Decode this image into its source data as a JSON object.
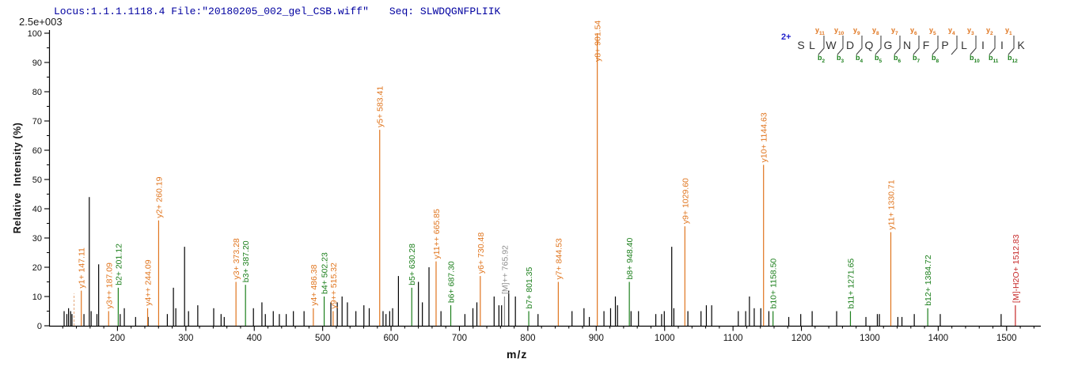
{
  "header": {
    "locus_file": "Locus:1.1.1.1118.4 File:\"20180205_002_gel_CSB.wiff\"",
    "seq_label": "Seq:",
    "seq_value": "SLWDQGNFPLIIK",
    "intensity_scale": "2.5e+003"
  },
  "colors": {
    "header_text": "#0000A0",
    "charge_text": "#2222CC",
    "y_ion": "#E0751E",
    "b_ion": "#1B7F1B",
    "precursor": "#8F8F8F",
    "neutral_loss": "#C62828",
    "peak": "#000000",
    "dashed_peak": "#E8B38C",
    "axis": "#000000",
    "residue": "#333333",
    "slash": "#444444"
  },
  "chart_data": {
    "type": "bar",
    "subtype": "ms2-stick-spectrum",
    "title": "",
    "xlabel": "m/z",
    "ylabel": "Relative  Intensity (%)",
    "xlim": [
      100,
      1550
    ],
    "ylim": [
      0,
      100
    ],
    "x_major_ticks": [
      200,
      300,
      400,
      500,
      600,
      700,
      800,
      900,
      1000,
      1100,
      1200,
      1300,
      1400,
      1500
    ],
    "x_minor_step": 20,
    "y_major_ticks": [
      0,
      10,
      20,
      30,
      40,
      50,
      60,
      70,
      80,
      90,
      100
    ],
    "y_minor_step": 5,
    "grid": false,
    "annotated_peaks": [
      {
        "label": "y1+ 147.11",
        "mz": 147.11,
        "pct": 12,
        "type": "y"
      },
      {
        "label": "y3++ 187.09",
        "mz": 187.09,
        "pct": 5,
        "type": "y"
      },
      {
        "label": "b2+ 201.12",
        "mz": 201.12,
        "pct": 13,
        "type": "b"
      },
      {
        "label": "y4++ 244.09",
        "mz": 244.09,
        "pct": 6,
        "type": "y"
      },
      {
        "label": "y2+ 260.19",
        "mz": 260.19,
        "pct": 36,
        "type": "y"
      },
      {
        "label": "y3+ 373.28",
        "mz": 373.28,
        "pct": 15,
        "type": "y"
      },
      {
        "label": "b3+ 387.20",
        "mz": 387.2,
        "pct": 14,
        "type": "b"
      },
      {
        "label": "y4+ 486.38",
        "mz": 486.38,
        "pct": 6,
        "type": "y"
      },
      {
        "label": "b4+ 502.23",
        "mz": 502.23,
        "pct": 10,
        "type": "b"
      },
      {
        "label": "y9++ 515.32",
        "mz": 515.32,
        "pct": 5,
        "type": "y"
      },
      {
        "label": "y5+ 583.41",
        "mz": 583.41,
        "pct": 67,
        "type": "y"
      },
      {
        "label": "b5+ 630.28",
        "mz": 630.28,
        "pct": 13,
        "type": "b"
      },
      {
        "label": "y11++ 665.85",
        "mz": 665.85,
        "pct": 22,
        "type": "y"
      },
      {
        "label": "b6+ 687.30",
        "mz": 687.3,
        "pct": 7,
        "type": "b"
      },
      {
        "label": "y6+ 730.48",
        "mz": 730.48,
        "pct": 17,
        "type": "y"
      },
      {
        "label": "[M]++ 765.92",
        "mz": 765.92,
        "pct": 10,
        "type": "M"
      },
      {
        "label": "b7+ 801.35",
        "mz": 801.35,
        "pct": 5,
        "type": "b"
      },
      {
        "label": "y7+ 844.53",
        "mz": 844.53,
        "pct": 15,
        "type": "y"
      },
      {
        "label": "y8+ 901.54",
        "mz": 901.54,
        "pct": 100,
        "type": "y"
      },
      {
        "label": "b8+ 948.40",
        "mz": 948.4,
        "pct": 15,
        "type": "b"
      },
      {
        "label": "y9+ 1029.60",
        "mz": 1029.6,
        "pct": 34,
        "type": "y"
      },
      {
        "label": "y10+ 1144.63",
        "mz": 1144.63,
        "pct": 55,
        "type": "y"
      },
      {
        "label": "b10+ 1158.50",
        "mz": 1158.5,
        "pct": 5,
        "type": "b"
      },
      {
        "label": "b11+ 1271.65",
        "mz": 1271.65,
        "pct": 5,
        "type": "b"
      },
      {
        "label": "y11+ 1330.71",
        "mz": 1330.71,
        "pct": 32,
        "type": "y"
      },
      {
        "label": "b12+ 1384.72",
        "mz": 1384.72,
        "pct": 6,
        "type": "b"
      },
      {
        "label": "[M]-H2O+ 1512.83",
        "mz": 1512.83,
        "pct": 7,
        "type": "loss"
      }
    ],
    "dashed_peak": {
      "mz": 136.5,
      "pct": 11,
      "style": "dashed"
    },
    "unannotated_peaks": [
      [
        122,
        5
      ],
      [
        126,
        4
      ],
      [
        128.5,
        6
      ],
      [
        131.5,
        5
      ],
      [
        133.5,
        4
      ],
      [
        151,
        4
      ],
      [
        158.8,
        44
      ],
      [
        161.5,
        5
      ],
      [
        170,
        4
      ],
      [
        172.5,
        21
      ],
      [
        204,
        4
      ],
      [
        210,
        6
      ],
      [
        226.5,
        3
      ],
      [
        244.8,
        3
      ],
      [
        272.9,
        4
      ],
      [
        281.8,
        13
      ],
      [
        285.3,
        6
      ],
      [
        298.1,
        27
      ],
      [
        303.9,
        5
      ],
      [
        317.4,
        7
      ],
      [
        340.7,
        6
      ],
      [
        351.5,
        4
      ],
      [
        356.1,
        3
      ],
      [
        398.8,
        6
      ],
      [
        411.2,
        8
      ],
      [
        416.2,
        4
      ],
      [
        427.8,
        5
      ],
      [
        436.7,
        4
      ],
      [
        446.7,
        4
      ],
      [
        457.2,
        5
      ],
      [
        472.8,
        5
      ],
      [
        512,
        8
      ],
      [
        521.4,
        8
      ],
      [
        528.4,
        10
      ],
      [
        536.2,
        8
      ],
      [
        548.6,
        5
      ],
      [
        560.3,
        7
      ],
      [
        568.1,
        6
      ],
      [
        588.3,
        5
      ],
      [
        592.6,
        4
      ],
      [
        598,
        5
      ],
      [
        602.3,
        6
      ],
      [
        610.8,
        17
      ],
      [
        640,
        15
      ],
      [
        645.8,
        8
      ],
      [
        655.5,
        20
      ],
      [
        673,
        5
      ],
      [
        708,
        4
      ],
      [
        719.7,
        6
      ],
      [
        725.5,
        8
      ],
      [
        750.7,
        10
      ],
      [
        757.7,
        7
      ],
      [
        761.6,
        7
      ],
      [
        772.1,
        12
      ],
      [
        781.8,
        10
      ],
      [
        814.9,
        4
      ],
      [
        864.6,
        5
      ],
      [
        882.1,
        6
      ],
      [
        889.9,
        3
      ],
      [
        911.3,
        5
      ],
      [
        921,
        6
      ],
      [
        928,
        10
      ],
      [
        931.1,
        7
      ],
      [
        950.9,
        5
      ],
      [
        961.8,
        5
      ],
      [
        987.1,
        4
      ],
      [
        995.6,
        4
      ],
      [
        999.5,
        5
      ],
      [
        1010.4,
        27
      ],
      [
        1013.5,
        6
      ],
      [
        1034,
        5
      ],
      [
        1053.2,
        5
      ],
      [
        1061,
        7
      ],
      [
        1068.8,
        7
      ],
      [
        1107.7,
        5
      ],
      [
        1118.5,
        5
      ],
      [
        1124,
        10
      ],
      [
        1131,
        6
      ],
      [
        1140.6,
        6
      ],
      [
        1152.4,
        5
      ],
      [
        1181.5,
        3
      ],
      [
        1199,
        4
      ],
      [
        1215.7,
        5
      ],
      [
        1251.5,
        5
      ],
      [
        1294.3,
        3
      ],
      [
        1311,
        4
      ],
      [
        1314,
        4
      ],
      [
        1341,
        3
      ],
      [
        1347,
        3
      ],
      [
        1365,
        4
      ],
      [
        1403,
        4
      ],
      [
        1492,
        4
      ]
    ]
  },
  "peptide_diagram": {
    "charge": "2+",
    "residues": [
      "S",
      "L",
      "W",
      "D",
      "Q",
      "G",
      "N",
      "F",
      "P",
      "L",
      "I",
      "I",
      "K"
    ],
    "cleavages": [
      {
        "y": "y11",
        "b": "b2"
      },
      {
        "y": "y10",
        "b": "b3"
      },
      {
        "y": "y9",
        "b": "b4"
      },
      {
        "y": "y8",
        "b": "b5"
      },
      {
        "y": "y7",
        "b": "b6"
      },
      {
        "y": "y6",
        "b": "b7"
      },
      {
        "y": "y5",
        "b": "b8"
      },
      {
        "y": "y4",
        "b": ""
      },
      {
        "y": "y3",
        "b": "b10"
      },
      {
        "y": "y2",
        "b": "b11"
      },
      {
        "y": "y1",
        "b": "b12"
      }
    ]
  }
}
